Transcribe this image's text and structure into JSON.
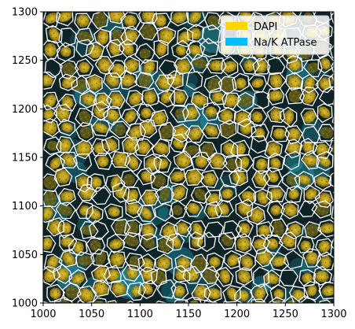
{
  "axes": {
    "x_ticks": [
      1000,
      1050,
      1100,
      1150,
      1200,
      1250,
      1300
    ],
    "y_ticks": [
      1000,
      1050,
      1100,
      1150,
      1200,
      1250,
      1300
    ],
    "xlim": [
      1000,
      1300
    ],
    "ylim": [
      1000,
      1300
    ],
    "x_tick_labels": [
      "1000",
      "1050",
      "1100",
      "1150",
      "1200",
      "1250",
      "1300"
    ],
    "y_tick_labels": [
      "1000",
      "1050",
      "1100",
      "1150",
      "1200",
      "1250",
      "1300"
    ]
  },
  "legend": {
    "placement": "top-right",
    "items": [
      {
        "label": "DAPI",
        "color": "#ffd700"
      },
      {
        "label": "Na/K ATPase",
        "color": "#00bfff"
      }
    ]
  },
  "image": {
    "description_colors": {
      "nucleus": "#b8a020",
      "membrane": "#1a6f80",
      "background": "#0b1a1c",
      "boundary": "#ffffff"
    }
  }
}
